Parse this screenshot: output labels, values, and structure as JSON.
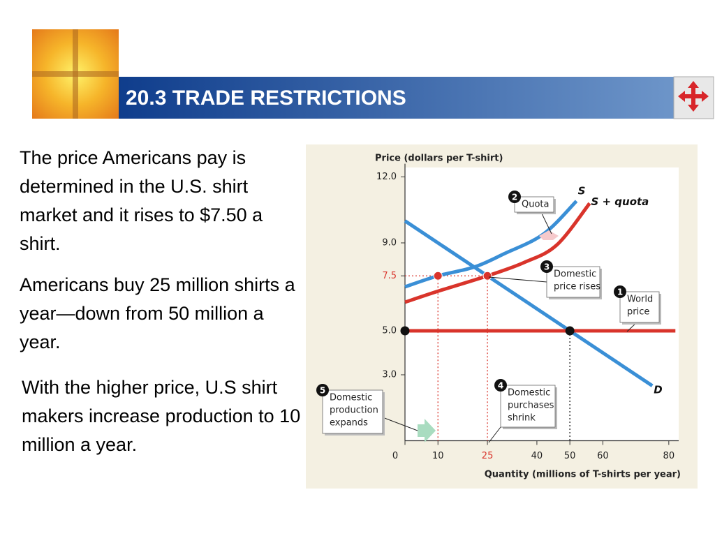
{
  "slide": {
    "title": "20.3 TRADE RESTRICTIONS",
    "paragraphs": [
      "The price Americans pay is determined in the U.S. shirt market and it rises to $7.50 a shirt.",
      "Americans buy 25 million shirts a year—down from 50 million a year.",
      "With the higher price, U.S shirt makers increase production to 10 million a year."
    ]
  },
  "chart_data": {
    "type": "line",
    "y_label": "Price (dollars per T-shirt)",
    "x_label": "Quantity (millions of T-shirts per year)",
    "xlim": [
      0,
      83
    ],
    "ylim": [
      0,
      12.6
    ],
    "xticks": [
      0,
      10,
      {
        "value": 25,
        "label": "25",
        "color": "#d9342b"
      },
      40,
      50,
      60,
      80
    ],
    "yticks": [
      {
        "value": 3,
        "label": "3.0"
      },
      {
        "value": 5,
        "label": "5.0"
      },
      {
        "value": 7.5,
        "label": "7.5",
        "color": "#d9342b"
      },
      {
        "value": 9,
        "label": "9.0"
      },
      {
        "value": 12,
        "label": "12.0"
      }
    ],
    "series": [
      {
        "name": "S",
        "color": "#3a8fd6",
        "x": [
          0,
          10,
          21,
          30,
          42,
          52
        ],
        "values": [
          7.0,
          7.5,
          7.9,
          8.5,
          9.4,
          10.9
        ]
      },
      {
        "name": "S + quota",
        "color": "#d9342b",
        "x": [
          0,
          10,
          25,
          36,
          46,
          56
        ],
        "values": [
          6.3,
          6.8,
          7.5,
          8.1,
          8.9,
          10.8
        ]
      },
      {
        "name": "D",
        "color": "#3a8fd6",
        "x": [
          0,
          75
        ],
        "values": [
          10,
          2.5
        ]
      },
      {
        "name": "World price",
        "color": "#d9342b",
        "x": [
          0,
          82
        ],
        "values": [
          5,
          5
        ]
      }
    ],
    "points": [
      {
        "x": 0,
        "y": 5,
        "color": "#111111"
      },
      {
        "x": 50,
        "y": 5,
        "color": "#111111"
      },
      {
        "x": 10,
        "y": 7.5,
        "color": "#d9342b"
      },
      {
        "x": 25,
        "y": 7.5,
        "color": "#d9342b"
      }
    ],
    "annotations": [
      {
        "number": "1",
        "lines": [
          "World",
          "price"
        ]
      },
      {
        "number": "2",
        "lines": [
          "Quota"
        ]
      },
      {
        "number": "3",
        "lines": [
          "Domestic",
          "price rises"
        ]
      },
      {
        "number": "4",
        "lines": [
          "Domestic",
          "purchases",
          "shrink"
        ]
      },
      {
        "number": "5",
        "lines": [
          "Domestic",
          "production",
          "expands"
        ]
      }
    ]
  }
}
